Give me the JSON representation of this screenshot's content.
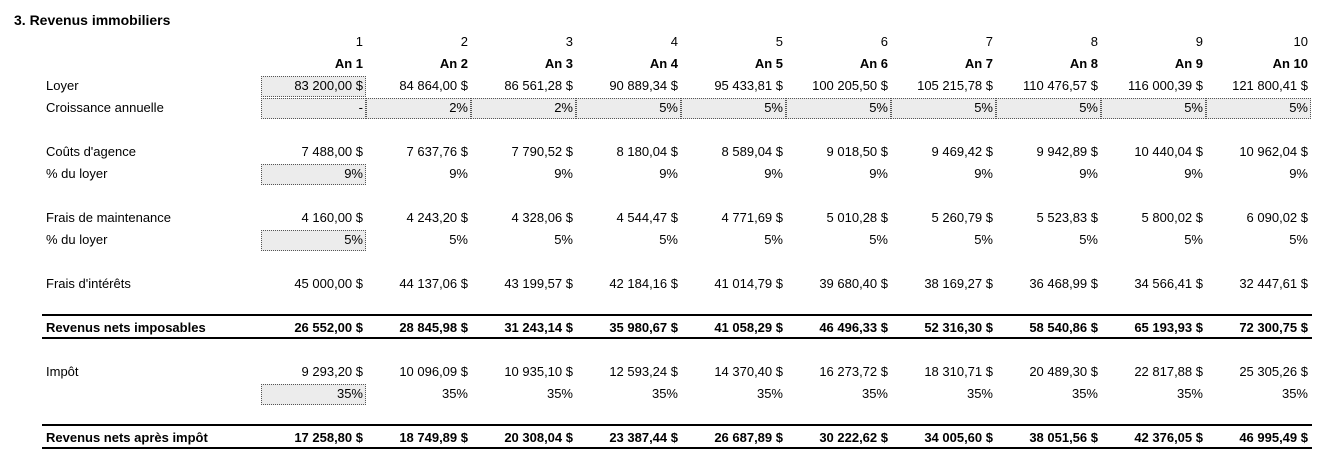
{
  "title": "3. Revenus immobiliers",
  "column_numbers": [
    "1",
    "2",
    "3",
    "4",
    "5",
    "6",
    "7",
    "8",
    "9",
    "10"
  ],
  "column_headers": [
    "An 1",
    "An 2",
    "An 3",
    "An 4",
    "An 5",
    "An 6",
    "An 7",
    "An 8",
    "An 9",
    "An 10"
  ],
  "sections": [
    {
      "rows": [
        {
          "label": "Loyer",
          "cells": [
            "83 200,00 $",
            "84 864,00 $",
            "86 561,28 $",
            "90 889,34 $",
            "95 433,81 $",
            "100 205,50 $",
            "105 215,78 $",
            "110 476,57 $",
            "116 000,39 $",
            "121 800,41 $"
          ]
        },
        {
          "label": "Croissance annuelle",
          "cells": [
            "-",
            "2%",
            "2%",
            "5%",
            "5%",
            "5%",
            "5%",
            "5%",
            "5%",
            "5%"
          ]
        }
      ]
    },
    {
      "rows": [
        {
          "label": "Coûts d'agence",
          "cells": [
            "7 488,00 $",
            "7 637,76 $",
            "7 790,52 $",
            "8 180,04 $",
            "8 589,04 $",
            "9 018,50 $",
            "9 469,42 $",
            "9 942,89 $",
            "10 440,04 $",
            "10 962,04 $"
          ]
        },
        {
          "label": "% du loyer",
          "cells": [
            "9%",
            "9%",
            "9%",
            "9%",
            "9%",
            "9%",
            "9%",
            "9%",
            "9%",
            "9%"
          ]
        }
      ]
    },
    {
      "rows": [
        {
          "label": "Frais de maintenance",
          "cells": [
            "4 160,00 $",
            "4 243,20 $",
            "4 328,06 $",
            "4 544,47 $",
            "4 771,69 $",
            "5 010,28 $",
            "5 260,79 $",
            "5 523,83 $",
            "5 800,02 $",
            "6 090,02 $"
          ]
        },
        {
          "label": "% du loyer",
          "cells": [
            "5%",
            "5%",
            "5%",
            "5%",
            "5%",
            "5%",
            "5%",
            "5%",
            "5%",
            "5%"
          ]
        }
      ]
    },
    {
      "rows": [
        {
          "label": "Frais d'intérêts",
          "cells": [
            "45 000,00 $",
            "44 137,06 $",
            "43 199,57 $",
            "42 184,16 $",
            "41 014,79 $",
            "39 680,40 $",
            "38 169,27 $",
            "36 468,99 $",
            "34 566,41 $",
            "32 447,61 $"
          ]
        }
      ]
    },
    {
      "total": true,
      "rows": [
        {
          "label": "Revenus nets imposables",
          "cells": [
            "26 552,00 $",
            "28 845,98 $",
            "31 243,14 $",
            "35 980,67 $",
            "41 058,29 $",
            "46 496,33 $",
            "52 316,30 $",
            "58 540,86 $",
            "65 193,93 $",
            "72 300,75 $"
          ]
        }
      ]
    },
    {
      "rows": [
        {
          "label": "Impôt",
          "cells": [
            "9 293,20 $",
            "10 096,09 $",
            "10 935,10 $",
            "12 593,24 $",
            "14 370,40 $",
            "16 273,72 $",
            "18 310,71 $",
            "20 489,30 $",
            "22 817,88 $",
            "25 305,26 $"
          ]
        },
        {
          "cells": [
            "35%",
            "35%",
            "35%",
            "35%",
            "35%",
            "35%",
            "35%",
            "35%",
            "35%",
            "35%"
          ]
        }
      ]
    },
    {
      "total": true,
      "rows": [
        {
          "label": "Revenus nets après impôt",
          "cells": [
            "17 258,80 $",
            "18 749,89 $",
            "20 308,04 $",
            "23 387,44 $",
            "26 687,89 $",
            "30 222,62 $",
            "34 005,60 $",
            "38 051,56 $",
            "42 376,05 $",
            "46 995,49 $"
          ]
        }
      ]
    }
  ]
}
